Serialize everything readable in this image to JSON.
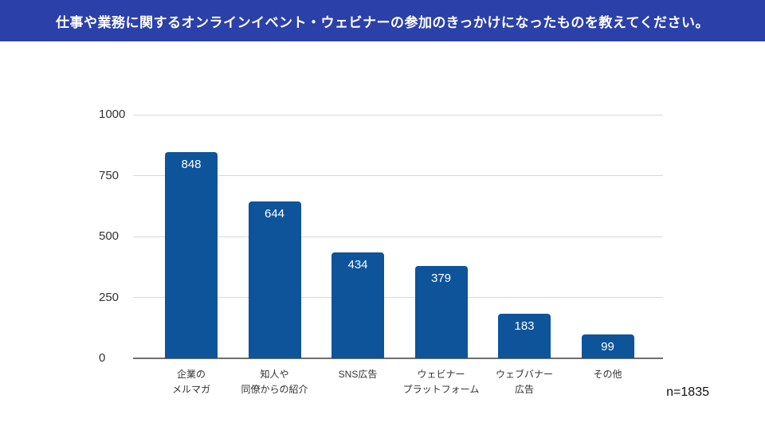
{
  "header": {
    "title": "仕事や業務に関するオンラインイベント・ウェビナーの参加のきっかけになったものを教えてください。",
    "bg_color": "#2b40a8",
    "text_color": "#ffffff"
  },
  "chart_data": {
    "type": "bar",
    "title": "",
    "xlabel": "",
    "ylabel": "",
    "categories": [
      "企業の\nメルマガ",
      "知人や\n同僚からの紹介",
      "SNS広告",
      "ウェビナー\nプラットフォーム",
      "ウェブバナー\n広告",
      "その他"
    ],
    "values": [
      848,
      644,
      434,
      379,
      183,
      99
    ],
    "ylim": [
      0,
      1000
    ],
    "yticks": [
      0,
      250,
      500,
      750,
      1000
    ],
    "grid": true,
    "legend": "none",
    "bar_color": "#0e549b",
    "value_label_color": "#ffffff",
    "gridline_color": "#d9d9d9",
    "axis_line_color": "#6f6f6f",
    "tick_label_color": "#333333"
  },
  "footnote": {
    "sample_size_label": "n=1835"
  }
}
